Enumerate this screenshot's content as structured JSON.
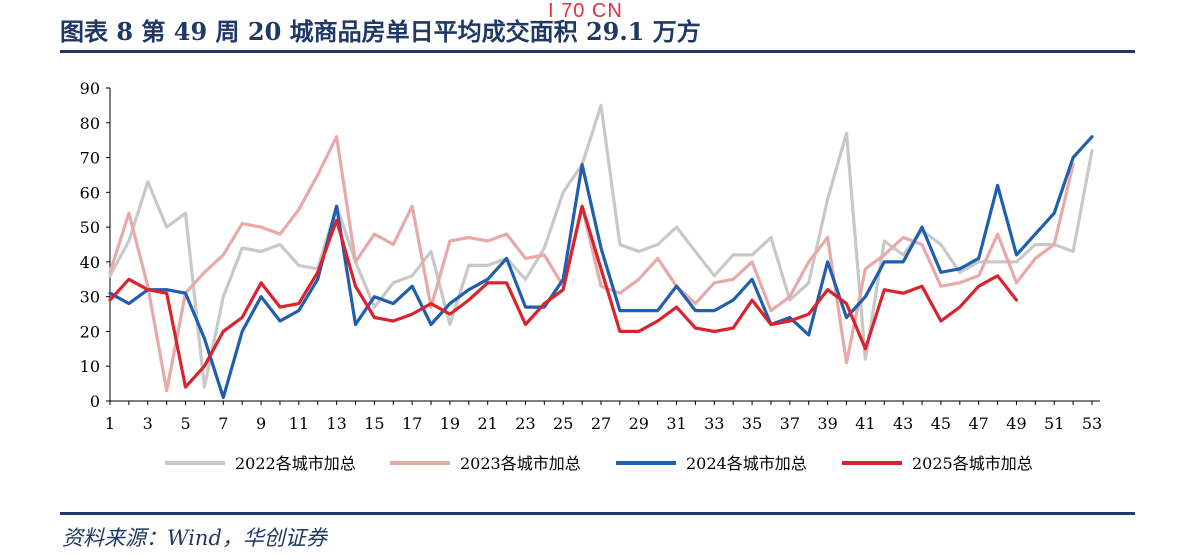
{
  "header": {
    "title": "图表 8   第 49 周 20 城商品房单日平均成交面积 29.1 万方",
    "watermark": "I 70 CN"
  },
  "footer": {
    "source": "资料来源：Wind，华创证券"
  },
  "chart_data": {
    "type": "line",
    "ylim": [
      0,
      90
    ],
    "yticks": [
      0,
      10,
      20,
      30,
      40,
      50,
      60,
      70,
      80,
      90
    ],
    "xlim": [
      1,
      53
    ],
    "xticks": [
      1,
      3,
      5,
      7,
      9,
      11,
      13,
      15,
      17,
      19,
      21,
      23,
      25,
      27,
      29,
      31,
      33,
      35,
      37,
      39,
      41,
      43,
      45,
      47,
      49,
      51,
      53
    ],
    "legend_position": "bottom",
    "grid": false,
    "series": [
      {
        "name": "2022各城市加总",
        "color": "#c8c8c8",
        "values": [
          36,
          46,
          63,
          50,
          54,
          4,
          30,
          44,
          43,
          45,
          39,
          38,
          56,
          40,
          27,
          34,
          36,
          43,
          22,
          39,
          39,
          41,
          35,
          44,
          60,
          68,
          85,
          45,
          43,
          45,
          50,
          43,
          36,
          42,
          42,
          47,
          29,
          34,
          58,
          77,
          12,
          46,
          42,
          49,
          45,
          37,
          40,
          40,
          40,
          45,
          45,
          43,
          72
        ]
      },
      {
        "name": "2023各城市加总",
        "color": "#e8a9a9",
        "values": [
          37,
          54,
          33,
          3,
          31,
          37,
          42,
          51,
          50,
          48,
          55,
          65,
          76,
          40,
          48,
          45,
          56,
          27,
          46,
          47,
          46,
          48,
          41,
          42,
          33,
          56,
          33,
          31,
          35,
          41,
          33,
          28,
          34,
          35,
          40,
          26,
          30,
          40,
          47,
          11,
          38,
          42,
          47,
          45,
          33,
          34,
          36,
          48,
          34,
          41,
          45,
          68,
          null
        ]
      },
      {
        "name": "2024各城市加总",
        "color": "#1f5fae",
        "values": [
          31,
          28,
          32,
          32,
          31,
          18,
          1,
          20,
          30,
          23,
          26,
          35,
          56,
          22,
          30,
          28,
          33,
          22,
          28,
          32,
          35,
          41,
          27,
          27,
          35,
          68,
          44,
          26,
          26,
          26,
          33,
          26,
          26,
          29,
          35,
          22,
          24,
          19,
          40,
          24,
          30,
          40,
          40,
          50,
          37,
          38,
          41,
          62,
          42,
          48,
          54,
          70,
          76
        ]
      },
      {
        "name": "2025各城市加总",
        "color": "#d9232d",
        "values": [
          29,
          35,
          32,
          31,
          4,
          10,
          20,
          24,
          34,
          27,
          28,
          37,
          52,
          33,
          24,
          23,
          25,
          28,
          25,
          29,
          34,
          34,
          22,
          28,
          32,
          56,
          38,
          20,
          20,
          23,
          27,
          21,
          20,
          21,
          29,
          22,
          23,
          25,
          32,
          28,
          15,
          32,
          31,
          33,
          23,
          27,
          33,
          36,
          29,
          null,
          null,
          null,
          null
        ]
      }
    ]
  }
}
